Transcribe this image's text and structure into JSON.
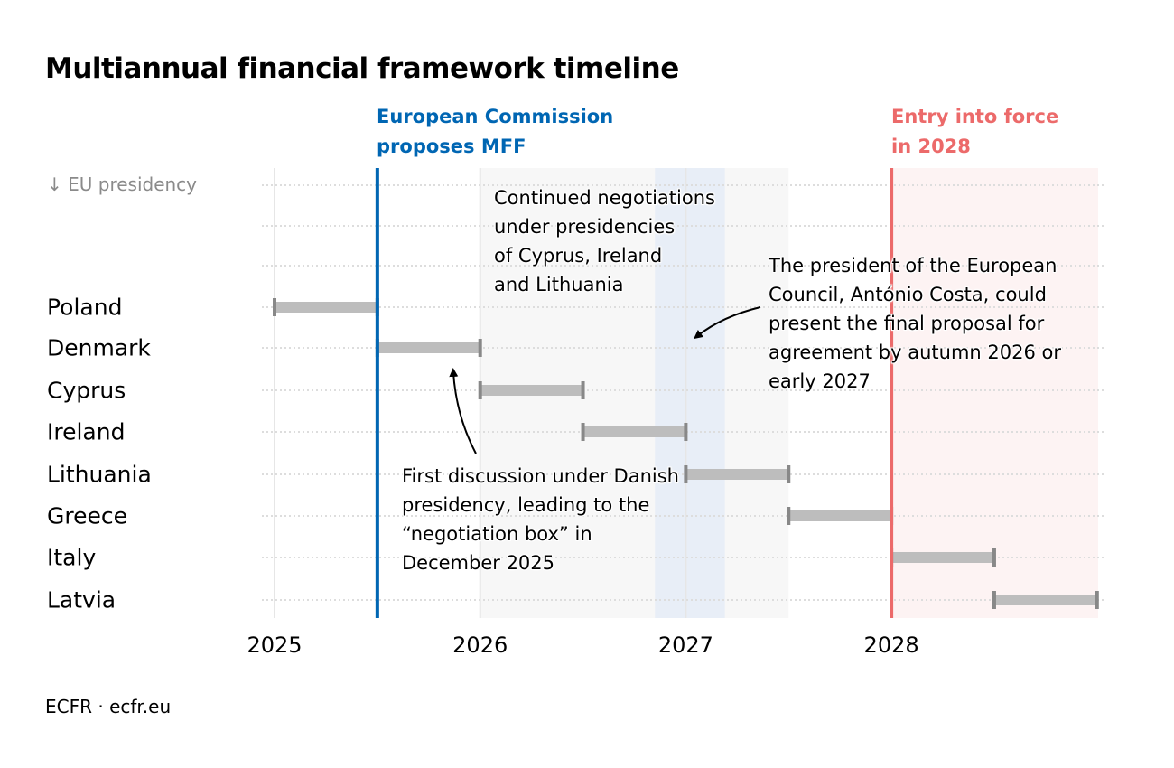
{
  "title": "Multiannual financial framework timeline",
  "presidency_note": "↓ EU presidency",
  "footer": "ECFR · ecfr.eu",
  "colors": {
    "commission_blue": "#0066b3",
    "entry_red": "#ec6a6a",
    "bar_fill": "#bdbdbd",
    "bar_cap": "#888888",
    "negotiation_band": "#f7f7f7",
    "costa_band": "#e8eef7",
    "entry_band": "#fdf3f3",
    "gridline": "#dddddd"
  },
  "events": {
    "commission": {
      "line1": "European Commission",
      "line2": "proposes MFF",
      "x": 2025.5
    },
    "entry": {
      "line1": "Entry into force",
      "line2": "in 2028",
      "x": 2028.0
    }
  },
  "annotations": {
    "continued": "Continued negotiations\nunder presidencies\nof Cyprus, Ireland\nand Lithuania",
    "costa": "The president of the European\nCouncil, António Costa, could\npresent the final proposal for\nagreement by autumn 2026 or\nearly 2027",
    "danish": "First discussion under Danish\npresidency, leading to the\n“negotiation box” in\nDecember 2025"
  },
  "chart_data": {
    "type": "gantt",
    "title": "Multiannual financial framework timeline",
    "xlabel": "",
    "ylabel": "EU presidency",
    "xlim": [
      2025,
      2029
    ],
    "x_ticks": [
      "2025",
      "2026",
      "2027",
      "2028"
    ],
    "grid": "dotted horizontal + light vertical at year ticks",
    "rows": [
      {
        "country": "Poland",
        "start": 2025.0,
        "end": 2025.5
      },
      {
        "country": "Denmark",
        "start": 2025.5,
        "end": 2026.0
      },
      {
        "country": "Cyprus",
        "start": 2026.0,
        "end": 2026.5
      },
      {
        "country": "Ireland",
        "start": 2026.5,
        "end": 2027.0
      },
      {
        "country": "Lithuania",
        "start": 2027.0,
        "end": 2027.5
      },
      {
        "country": "Greece",
        "start": 2027.5,
        "end": 2028.0
      },
      {
        "country": "Italy",
        "start": 2028.0,
        "end": 2028.5
      },
      {
        "country": "Latvia",
        "start": 2028.5,
        "end": 2029.0
      }
    ],
    "markers": [
      {
        "label": "European Commission proposes MFF",
        "x": 2025.5
      },
      {
        "label": "Entry into force in 2028",
        "x": 2028.0
      }
    ],
    "bands": [
      {
        "label": "Continued negotiations under presidencies of Cyprus, Ireland and Lithuania",
        "start": 2026.0,
        "end": 2027.5
      },
      {
        "label": "Costa final proposal window (autumn 2026 – early 2027)",
        "start": 2026.85,
        "end": 2027.19
      },
      {
        "label": "Entry into force period",
        "start": 2028.0,
        "end": 2029.0
      }
    ]
  }
}
